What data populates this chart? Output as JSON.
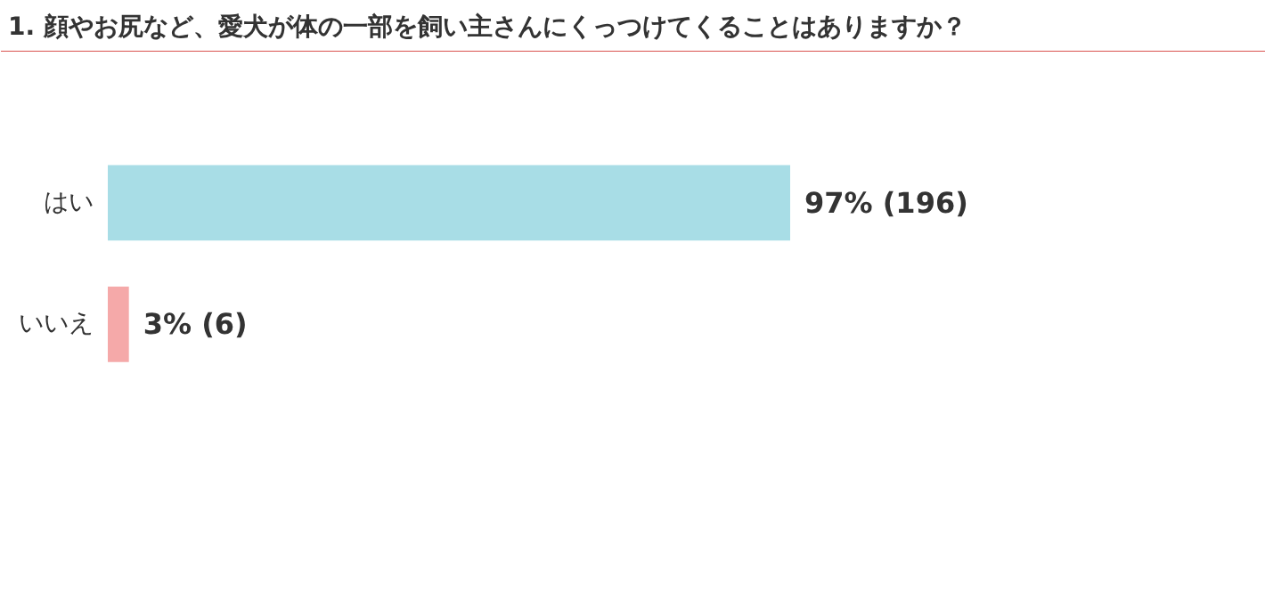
{
  "chart_data": {
    "type": "bar",
    "orientation": "horizontal",
    "title": "1. 顔やお尻など、愛犬が体の一部を飼い主さんにくっつけてくることはありますか？",
    "categories": [
      "はい",
      "いいえ"
    ],
    "values": [
      97,
      3
    ],
    "colors": [
      "#a8dde6",
      "#f5a9a9"
    ],
    "value_labels": [
      "97% (196)",
      "3% (6)"
    ],
    "grid": false
  }
}
